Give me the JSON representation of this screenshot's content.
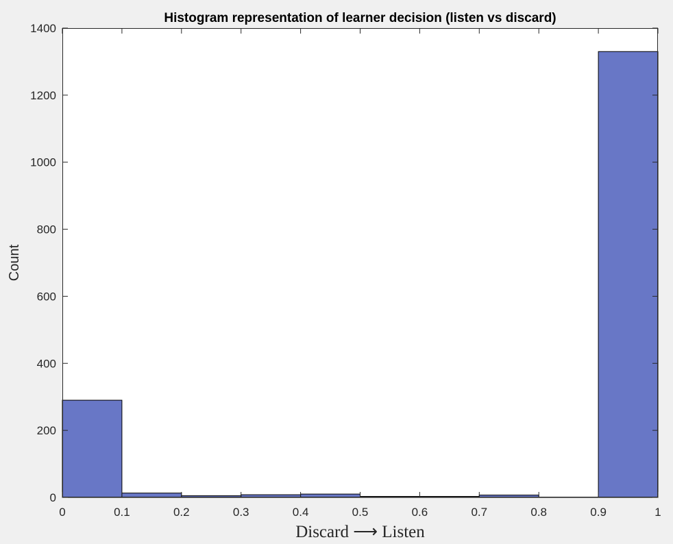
{
  "chart_data": {
    "type": "bar",
    "title": "Histogram representation of learner decision (listen vs discard)",
    "xlabel": "Discard ⟶ Listen",
    "ylabel": "Count",
    "bin_edges": [
      0,
      0.1,
      0.2,
      0.3,
      0.4,
      0.5,
      0.6,
      0.7,
      0.8,
      0.9,
      1
    ],
    "values": [
      290,
      13,
      5,
      8,
      10,
      3,
      3,
      7,
      1,
      1330
    ],
    "xlim": [
      0,
      1
    ],
    "ylim": [
      0,
      1400
    ],
    "xticks": [
      "0",
      "0.1",
      "0.2",
      "0.3",
      "0.4",
      "0.5",
      "0.6",
      "0.7",
      "0.8",
      "0.9",
      "1"
    ],
    "yticks": [
      "0",
      "200",
      "400",
      "600",
      "800",
      "1000",
      "1200",
      "1400"
    ],
    "bar_color": "#6877c6",
    "grid": false,
    "legend": false
  }
}
